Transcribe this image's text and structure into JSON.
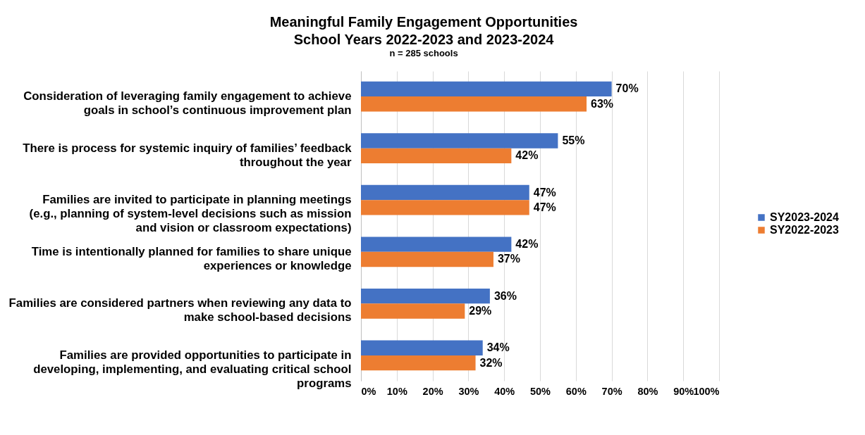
{
  "chart_data": {
    "type": "bar",
    "orientation": "horizontal",
    "title": "Meaningful Family Engagement Opportunities\nSchool Years 2022-2023 and 2023-2024",
    "subtitle": "n = 285 schools",
    "categories": [
      "Consideration of leveraging family engagement to achieve goals in school’s continuous improvement plan",
      "There is process for systemic inquiry of families’ feedback throughout the year",
      "Families are invited to participate in planning meetings (e.g., planning of system-level decisions such as mission and vision or classroom expectations)",
      "Time is intentionally planned for families to share unique experiences or knowledge",
      "Families are considered partners when reviewing any data to make school-based decisions",
      "Families are provided opportunities to participate in developing, implementing, and evaluating critical school programs"
    ],
    "series": [
      {
        "name": "SY2023-2024",
        "color": "#4472c4",
        "values": [
          70,
          55,
          47,
          42,
          36,
          34
        ],
        "value_labels": [
          "70%",
          "55%",
          "47%",
          "42%",
          "36%",
          "34%"
        ]
      },
      {
        "name": "SY2022-2023",
        "color": "#ed7d31",
        "values": [
          63,
          42,
          47,
          37,
          29,
          32
        ],
        "value_labels": [
          "63%",
          "42%",
          "47%",
          "37%",
          "29%",
          "32%"
        ]
      }
    ],
    "xlim": [
      0,
      100
    ],
    "xticks": [
      {
        "value": 0,
        "label": "0%"
      },
      {
        "value": 10,
        "label": "10%"
      },
      {
        "value": 20,
        "label": "20%"
      },
      {
        "value": 30,
        "label": "30%"
      },
      {
        "value": 40,
        "label": "40%"
      },
      {
        "value": 50,
        "label": "50%"
      },
      {
        "value": 60,
        "label": "60%"
      },
      {
        "value": 70,
        "label": "70%"
      },
      {
        "value": 80,
        "label": "80%"
      },
      {
        "value": 90,
        "label": "90%"
      },
      {
        "value": 100,
        "label": "100%"
      }
    ],
    "grid": "x",
    "legend": "right"
  }
}
